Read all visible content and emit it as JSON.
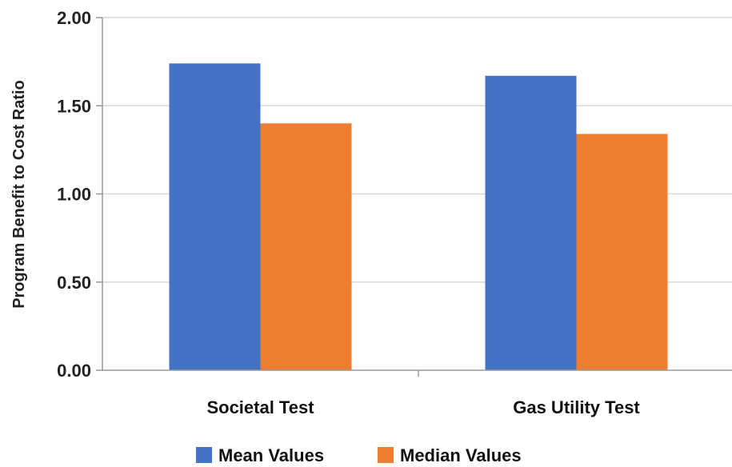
{
  "chart_data": {
    "type": "bar",
    "title": "",
    "xlabel": "",
    "ylabel": "Program Benefit to Cost Ratio",
    "ylim": [
      0,
      2.0
    ],
    "yticks": [
      "0.00",
      "0.50",
      "1.00",
      "1.50",
      "2.00"
    ],
    "categories": [
      "Societal Test",
      "Gas Utility Test"
    ],
    "series": [
      {
        "name": "Mean Values",
        "color": "#4472C4",
        "values": [
          1.74,
          1.67
        ]
      },
      {
        "name": "Median Values",
        "color": "#ED7D31",
        "values": [
          1.4,
          1.34
        ]
      }
    ],
    "grid": true,
    "legend_position": "bottom"
  }
}
